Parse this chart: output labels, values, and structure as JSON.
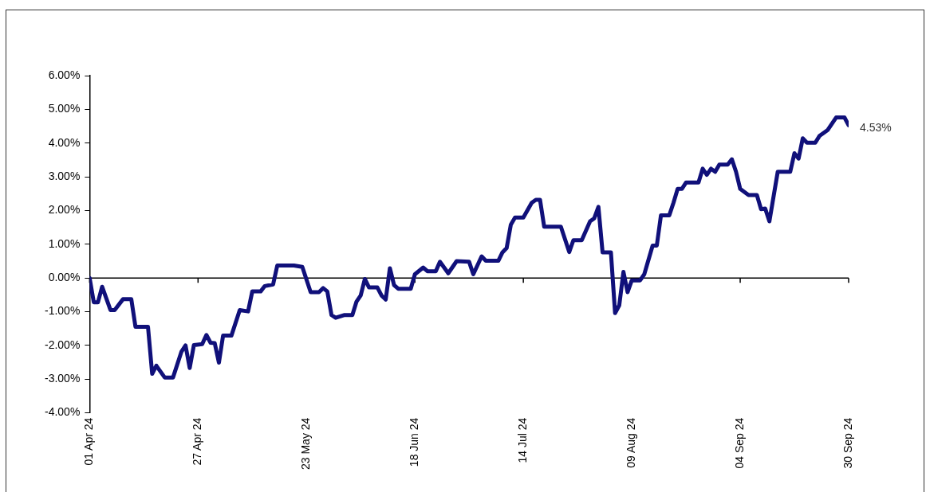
{
  "chart_data": {
    "type": "line",
    "series": [
      {
        "color": "#10107a",
        "x": [
          "2024-04-01",
          "2024-04-02",
          "2024-04-03",
          "2024-04-04",
          "2024-04-06",
          "2024-04-07",
          "2024-04-09",
          "2024-04-11",
          "2024-04-12",
          "2024-04-15",
          "2024-04-16",
          "2024-04-17",
          "2024-04-19",
          "2024-04-21",
          "2024-04-23",
          "2024-04-24",
          "2024-04-25",
          "2024-04-26",
          "2024-04-28",
          "2024-04-29",
          "2024-04-30",
          "2024-05-01",
          "2024-05-02",
          "2024-05-03",
          "2024-05-05",
          "2024-05-07",
          "2024-05-09",
          "2024-05-10",
          "2024-05-12",
          "2024-05-13",
          "2024-05-15",
          "2024-05-16",
          "2024-05-20",
          "2024-05-22",
          "2024-05-24",
          "2024-05-26",
          "2024-05-27",
          "2024-05-28",
          "2024-05-29",
          "2024-05-30",
          "2024-06-01",
          "2024-06-03",
          "2024-06-04",
          "2024-06-05",
          "2024-06-06",
          "2024-06-07",
          "2024-06-09",
          "2024-06-10",
          "2024-06-11",
          "2024-06-12",
          "2024-06-13",
          "2024-06-14",
          "2024-06-17",
          "2024-06-18",
          "2024-06-20",
          "2024-06-21",
          "2024-06-23",
          "2024-06-24",
          "2024-06-26",
          "2024-06-28",
          "2024-07-01",
          "2024-07-02",
          "2024-07-04",
          "2024-07-05",
          "2024-07-08",
          "2024-07-09",
          "2024-07-10",
          "2024-07-11",
          "2024-07-12",
          "2024-07-14",
          "2024-07-16",
          "2024-07-17",
          "2024-07-18",
          "2024-07-19",
          "2024-07-23",
          "2024-07-25",
          "2024-07-26",
          "2024-07-28",
          "2024-07-30",
          "2024-07-31",
          "2024-08-01",
          "2024-08-02",
          "2024-08-04",
          "2024-08-05",
          "2024-08-06",
          "2024-08-07",
          "2024-08-08",
          "2024-08-09",
          "2024-08-11",
          "2024-08-12",
          "2024-08-14",
          "2024-08-15",
          "2024-08-16",
          "2024-08-18",
          "2024-08-19",
          "2024-08-20",
          "2024-08-21",
          "2024-08-22",
          "2024-08-25",
          "2024-08-26",
          "2024-08-27",
          "2024-08-28",
          "2024-08-29",
          "2024-08-30",
          "2024-09-01",
          "2024-09-02",
          "2024-09-03",
          "2024-09-04",
          "2024-09-06",
          "2024-09-08",
          "2024-09-09",
          "2024-09-10",
          "2024-09-11",
          "2024-09-13",
          "2024-09-16",
          "2024-09-17",
          "2024-09-18",
          "2024-09-19",
          "2024-09-20",
          "2024-09-22",
          "2024-09-23",
          "2024-09-25",
          "2024-09-27",
          "2024-09-29",
          "2024-09-30"
        ],
        "values": [
          0,
          -0.72,
          -0.72,
          -0.26,
          -0.95,
          -0.95,
          -0.63,
          -0.63,
          -1.45,
          -1.45,
          -2.84,
          -2.6,
          -2.95,
          -2.95,
          -2.19,
          -2.0,
          -2.67,
          -1.99,
          -1.96,
          -1.69,
          -1.92,
          -1.93,
          -2.51,
          -1.71,
          -1.71,
          -0.95,
          -0.99,
          -0.4,
          -0.4,
          -0.24,
          -0.19,
          0.37,
          0.37,
          0.33,
          -0.42,
          -0.42,
          -0.3,
          -0.4,
          -1.1,
          -1.18,
          -1.1,
          -1.1,
          -0.7,
          -0.52,
          -0.03,
          -0.28,
          -0.28,
          -0.52,
          -0.64,
          0.29,
          -0.21,
          -0.32,
          -0.32,
          0.11,
          0.31,
          0.2,
          0.2,
          0.48,
          0.14,
          0.5,
          0.48,
          0.11,
          0.64,
          0.51,
          0.51,
          0.76,
          0.89,
          1.58,
          1.79,
          1.79,
          2.23,
          2.32,
          2.32,
          1.52,
          1.52,
          0.77,
          1.12,
          1.12,
          1.68,
          1.77,
          2.11,
          0.76,
          0.76,
          -1.04,
          -0.81,
          0.18,
          -0.42,
          -0.07,
          -0.07,
          0.11,
          0.96,
          0.96,
          1.86,
          1.86,
          2.23,
          2.64,
          2.64,
          2.83,
          2.83,
          3.24,
          3.06,
          3.24,
          3.15,
          3.36,
          3.36,
          3.52,
          3.15,
          2.64,
          2.46,
          2.46,
          2.04,
          2.06,
          1.68,
          3.15,
          3.15,
          3.7,
          3.54,
          4.14,
          4.01,
          4.01,
          4.21,
          4.39,
          4.76,
          4.76,
          4.53
        ]
      }
    ],
    "xlim": [
      "2024-04-01",
      "2024-09-30"
    ],
    "xticks": [
      {
        "value": "2024-04-01",
        "label": "01 Apr 24"
      },
      {
        "value": "2024-04-27",
        "label": "27 Apr 24"
      },
      {
        "value": "2024-05-23",
        "label": "23 May 24"
      },
      {
        "value": "2024-06-18",
        "label": "18 Jun 24"
      },
      {
        "value": "2024-07-14",
        "label": "14 Jul 24"
      },
      {
        "value": "2024-08-09",
        "label": "09 Aug 24"
      },
      {
        "value": "2024-09-04",
        "label": "04 Sep 24"
      },
      {
        "value": "2024-09-30",
        "label": "30 Sep 24"
      }
    ],
    "ylim": [
      -4,
      6
    ],
    "yticks": [
      {
        "value": -4,
        "label": "-4.00%"
      },
      {
        "value": -3,
        "label": "-3.00%"
      },
      {
        "value": -2,
        "label": "-2.00%"
      },
      {
        "value": -1,
        "label": "-1.00%"
      },
      {
        "value": 0,
        "label": "0.00%"
      },
      {
        "value": 1,
        "label": "1.00%"
      },
      {
        "value": 2,
        "label": "2.00%"
      },
      {
        "value": 3,
        "label": "3.00%"
      },
      {
        "value": 4,
        "label": "4.00%"
      },
      {
        "value": 5,
        "label": "5.00%"
      },
      {
        "value": 6,
        "label": "6.00%"
      }
    ],
    "ref_lines": [
      {
        "axis": "y",
        "value": 0,
        "color": "#000000"
      }
    ],
    "annotations": [
      {
        "text": "4.53%",
        "x": "2024-09-30",
        "y": 4.53
      }
    ],
    "grid": false,
    "marker": "none",
    "line_style": "solid"
  }
}
